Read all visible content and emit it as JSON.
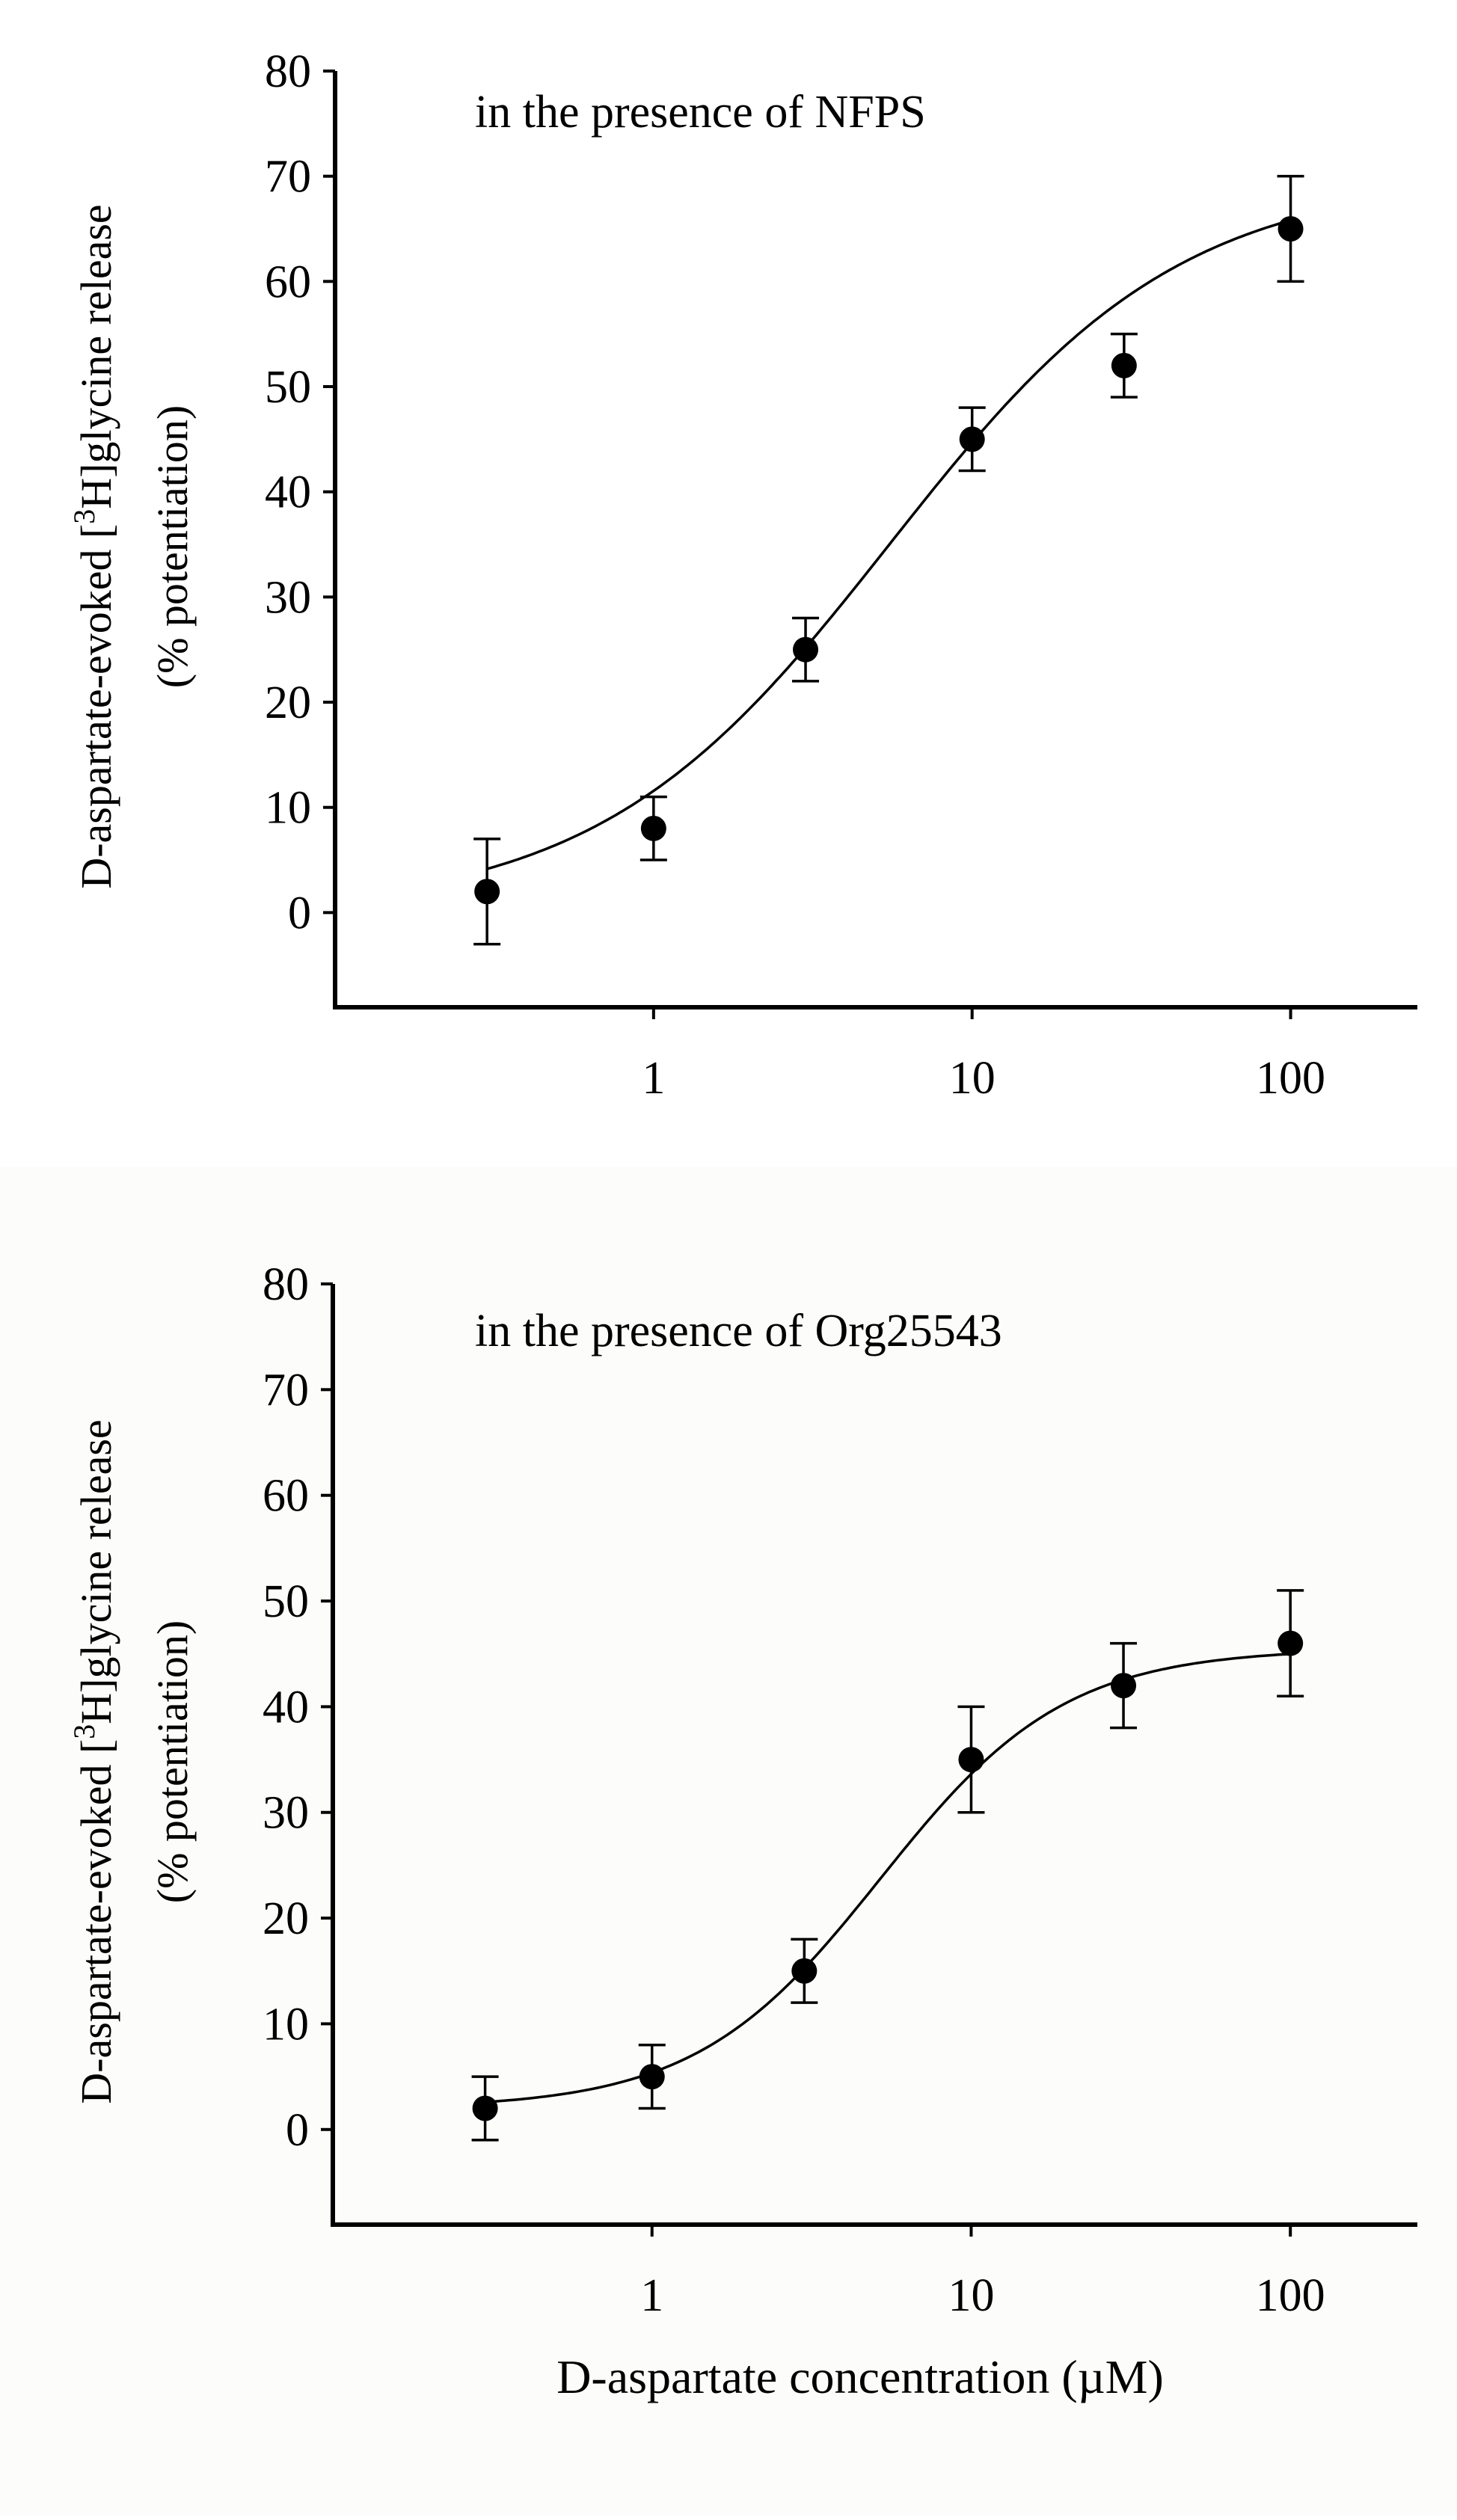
{
  "figure": {
    "xlabel": "D-aspartate concentration (µM)"
  },
  "chart_data": [
    {
      "type": "scatter",
      "panel": "top",
      "annotation": "in the presence of NFPS",
      "ylabel_line1_pre": "D-aspartate-evoked [",
      "ylabel_line1_sup": "3",
      "ylabel_line1_post": "H]glycine release",
      "ylabel_line2": "(% potentiation)",
      "x_scale": "log",
      "x_ticks": [
        1,
        10,
        100
      ],
      "x_tick_labels": [
        "1",
        "10",
        "100"
      ],
      "y_ticks": [
        0,
        10,
        20,
        30,
        40,
        50,
        60,
        70,
        80
      ],
      "y_tick_labels": [
        "0",
        "10",
        "20",
        "30",
        "40",
        "50",
        "60",
        "70",
        "80"
      ],
      "xlim": [
        0.1,
        250
      ],
      "ylim": [
        -9,
        80
      ],
      "series": [
        {
          "x": [
            0.3,
            1,
            3,
            10,
            30,
            100
          ],
          "y": [
            2,
            8,
            25,
            45,
            52,
            65
          ],
          "y_error": [
            5,
            3,
            3,
            3,
            3,
            5
          ]
        }
      ],
      "fit_curve": {
        "bottom": 0,
        "top": 70,
        "ec50": 5.5,
        "hill": 0.95
      }
    },
    {
      "type": "scatter",
      "panel": "bottom",
      "annotation": "in the presence of Org25543",
      "ylabel_line1_pre": "D-aspartate-evoked [",
      "ylabel_line1_sup": "3",
      "ylabel_line1_post": "H]glycine release",
      "ylabel_line2": "(% potentiation)",
      "x_scale": "log",
      "x_ticks": [
        1,
        10,
        100
      ],
      "x_tick_labels": [
        "1",
        "10",
        "100"
      ],
      "y_ticks": [
        0,
        10,
        20,
        30,
        40,
        50,
        60,
        70,
        80
      ],
      "y_tick_labels": [
        "0",
        "10",
        "20",
        "30",
        "40",
        "50",
        "60",
        "70",
        "80"
      ],
      "xlim": [
        0.1,
        250
      ],
      "ylim": [
        -9,
        80
      ],
      "series": [
        {
          "x": [
            0.3,
            1,
            3,
            10,
            30,
            100
          ],
          "y": [
            2,
            5,
            15,
            35,
            42,
            46
          ],
          "y_error": [
            3,
            3,
            3,
            5,
            4,
            5
          ]
        }
      ],
      "fit_curve": {
        "bottom": 2,
        "top": 45.5,
        "ec50": 5.2,
        "hill": 1.5
      }
    }
  ]
}
